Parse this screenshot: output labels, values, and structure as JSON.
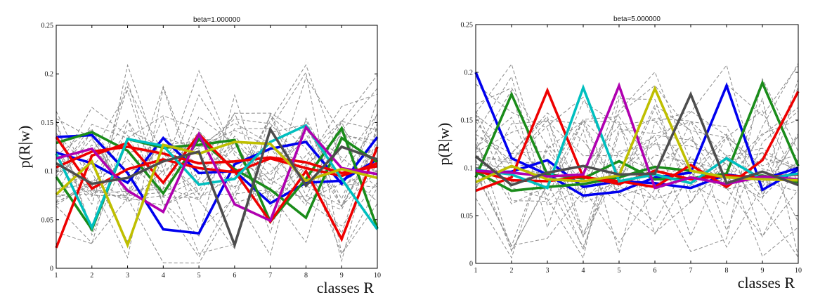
{
  "colors": {
    "background_lines": "#8c8c8c",
    "axes": "#000000"
  },
  "chart_data": [
    {
      "type": "line",
      "title": "beta=1.000000",
      "xlabel": "classes R",
      "ylabel": "p(R|w)",
      "xlim": [
        1,
        10
      ],
      "ylim": [
        0,
        0.25
      ],
      "x_ticks": [
        "1",
        "2",
        "3",
        "4",
        "5",
        "6",
        "7",
        "8",
        "9",
        "10"
      ],
      "y_ticks": [
        "0",
        "0.05",
        "0.1",
        "0.15",
        "0.2",
        "0.25"
      ],
      "grid": false,
      "x": [
        1,
        2,
        3,
        4,
        5,
        6,
        7,
        8,
        9,
        10
      ],
      "series": [
        {
          "color": "#0000ee",
          "values": [
            0.135,
            0.137,
            0.098,
            0.04,
            0.036,
            0.107,
            0.123,
            0.13,
            0.087,
            0.135
          ]
        },
        {
          "color": "#0000ee",
          "values": [
            0.119,
            0.108,
            0.088,
            0.134,
            0.098,
            0.1,
            0.067,
            0.088,
            0.09,
            0.112
          ]
        },
        {
          "color": "#1a8c1a",
          "values": [
            0.094,
            0.04,
            0.133,
            0.124,
            0.127,
            0.132,
            0.048,
            0.092,
            0.144,
            0.041
          ]
        },
        {
          "color": "#1a8c1a",
          "values": [
            0.129,
            0.14,
            0.121,
            0.077,
            0.133,
            0.102,
            0.081,
            0.052,
            0.134,
            0.109
          ]
        },
        {
          "color": "#ee0000",
          "values": [
            0.021,
            0.116,
            0.129,
            0.088,
            0.138,
            0.1,
            0.048,
            0.1,
            0.03,
            0.125
          ]
        },
        {
          "color": "#ee0000",
          "values": [
            0.135,
            0.082,
            0.102,
            0.112,
            0.103,
            0.099,
            0.113,
            0.103,
            0.095,
            0.108
          ]
        },
        {
          "color": "#ee0000",
          "values": [
            0.104,
            0.12,
            0.125,
            0.118,
            0.108,
            0.11,
            0.114,
            0.109,
            0.098,
            0.105
          ]
        },
        {
          "color": "#00bfbf",
          "values": [
            0.118,
            0.042,
            0.133,
            0.126,
            0.086,
            0.092,
            0.13,
            0.147,
            0.092,
            0.04
          ]
        },
        {
          "color": "#b000b0",
          "values": [
            0.113,
            0.123,
            0.08,
            0.058,
            0.138,
            0.066,
            0.049,
            0.145,
            0.103,
            0.097
          ]
        },
        {
          "color": "#bfbf00",
          "values": [
            0.076,
            0.11,
            0.024,
            0.127,
            0.118,
            0.13,
            0.128,
            0.09,
            0.102,
            0.093
          ]
        },
        {
          "color": "#4d4d4d",
          "values": [
            0.108,
            0.087,
            0.093,
            0.11,
            0.12,
            0.024,
            0.143,
            0.085,
            0.125,
            0.112
          ]
        }
      ]
    },
    {
      "type": "line",
      "title": "beta=5.000000",
      "xlabel": "classes R",
      "ylabel": "p(R|w)",
      "xlim": [
        1,
        10
      ],
      "ylim": [
        0,
        0.25
      ],
      "x_ticks": [
        "1",
        "2",
        "3",
        "4",
        "5",
        "6",
        "7",
        "8",
        "9",
        "10"
      ],
      "y_ticks": [
        "0",
        "0.05",
        "0.1",
        "0.15",
        "0.2",
        "0.25"
      ],
      "grid": false,
      "x": [
        1,
        2,
        3,
        4,
        5,
        6,
        7,
        8,
        9,
        10
      ],
      "series": [
        {
          "color": "#0000ee",
          "values": [
            0.2,
            0.11,
            0.093,
            0.071,
            0.075,
            0.09,
            0.095,
            0.186,
            0.077,
            0.098
          ]
        },
        {
          "color": "#0000ee",
          "values": [
            0.095,
            0.096,
            0.108,
            0.08,
            0.086,
            0.084,
            0.079,
            0.093,
            0.088,
            0.1
          ]
        },
        {
          "color": "#1a8c1a",
          "values": [
            0.09,
            0.177,
            0.093,
            0.089,
            0.107,
            0.088,
            0.089,
            0.094,
            0.189,
            0.102
          ]
        },
        {
          "color": "#1a8c1a",
          "values": [
            0.096,
            0.076,
            0.08,
            0.083,
            0.09,
            0.101,
            0.097,
            0.09,
            0.092,
            0.085
          ]
        },
        {
          "color": "#ee0000",
          "values": [
            0.076,
            0.09,
            0.181,
            0.09,
            0.086,
            0.08,
            0.103,
            0.08,
            0.108,
            0.18
          ]
        },
        {
          "color": "#ee0000",
          "values": [
            0.097,
            0.087,
            0.086,
            0.091,
            0.083,
            0.097,
            0.088,
            0.092,
            0.09,
            0.093
          ]
        },
        {
          "color": "#00bfbf",
          "values": [
            0.098,
            0.093,
            0.079,
            0.184,
            0.086,
            0.093,
            0.084,
            0.11,
            0.088,
            0.094
          ]
        },
        {
          "color": "#b000b0",
          "values": [
            0.097,
            0.095,
            0.091,
            0.093,
            0.186,
            0.079,
            0.09,
            0.083,
            0.091,
            0.088
          ]
        },
        {
          "color": "#bfbf00",
          "values": [
            0.085,
            0.102,
            0.088,
            0.086,
            0.092,
            0.183,
            0.097,
            0.09,
            0.088,
            0.087
          ]
        },
        {
          "color": "#4d4d4d",
          "values": [
            0.112,
            0.082,
            0.095,
            0.102,
            0.093,
            0.094,
            0.177,
            0.084,
            0.096,
            0.082
          ]
        }
      ]
    }
  ]
}
